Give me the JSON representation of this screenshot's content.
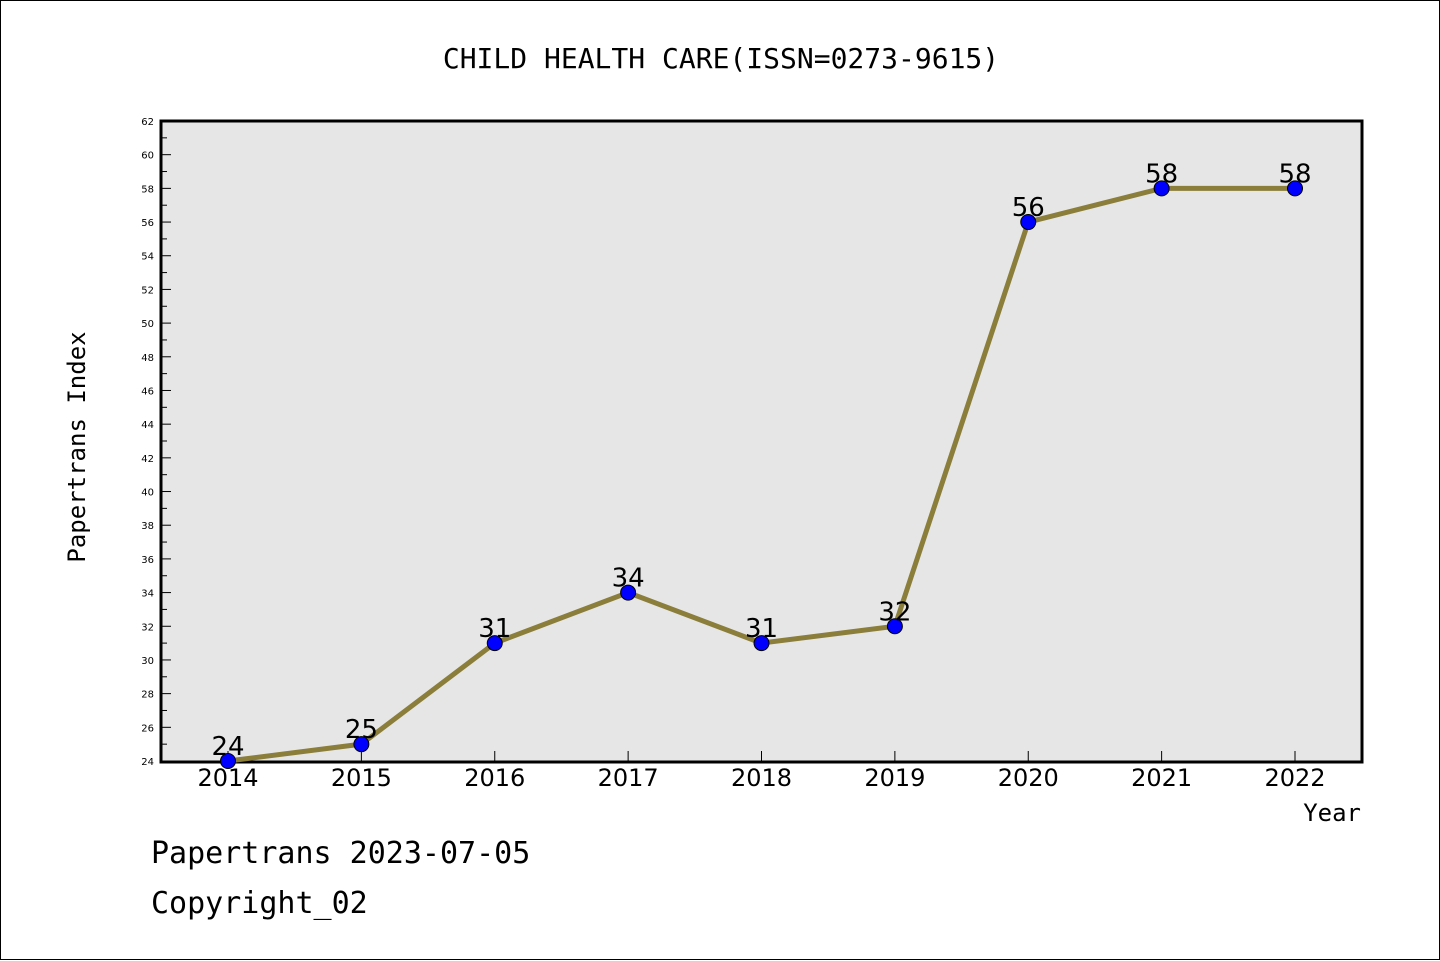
{
  "chart_data": {
    "type": "line",
    "title": "CHILD HEALTH CARE(ISSN=0273-9615)",
    "xlabel": "Year",
    "ylabel": "Papertrans Index",
    "categories": [
      "2014",
      "2015",
      "2016",
      "2017",
      "2018",
      "2019",
      "2020",
      "2021",
      "2022"
    ],
    "values": [
      24,
      25,
      31,
      34,
      31,
      32,
      56,
      58,
      58
    ],
    "ylim": [
      24,
      62
    ],
    "yticks": [
      24,
      26,
      28,
      30,
      32,
      34,
      36,
      38,
      40,
      42,
      44,
      46,
      48,
      50,
      52,
      54,
      56,
      58,
      60,
      62
    ],
    "grid": false,
    "line_color": "#8B7D3A",
    "marker_color": "#0000FF",
    "plot_background": "#E6E6E6"
  },
  "footer": {
    "line1": "Papertrans 2023-07-05",
    "line2": "Copyright_02"
  }
}
